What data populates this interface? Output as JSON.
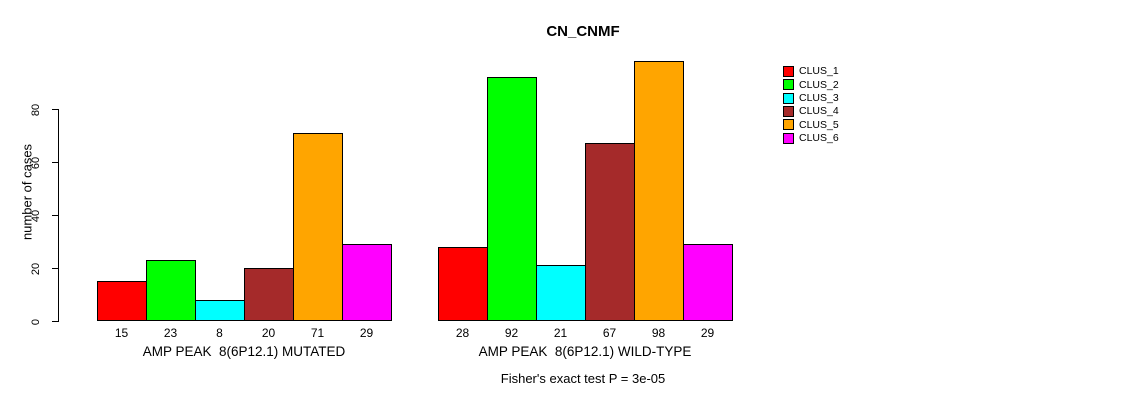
{
  "chart_data": {
    "type": "bar",
    "title": "CN_CNMF",
    "ylabel": "number of cases",
    "yticks": [
      0,
      20,
      40,
      60,
      80
    ],
    "ylim": [
      0,
      100
    ],
    "grid": false,
    "legend_position": "right",
    "clusters": [
      {
        "name": "CLUS_1",
        "color": "#FF0000"
      },
      {
        "name": "CLUS_2",
        "color": "#00FF00"
      },
      {
        "name": "CLUS_3",
        "color": "#00FFFF"
      },
      {
        "name": "CLUS_4",
        "color": "#A52A2A"
      },
      {
        "name": "CLUS_5",
        "color": "#FFA500"
      },
      {
        "name": "CLUS_6",
        "color": "#FF00FF"
      }
    ],
    "groups": [
      {
        "label": "AMP PEAK  8(6P12.1) MUTATED",
        "values": [
          15,
          23,
          8,
          20,
          71,
          29
        ]
      },
      {
        "label": "AMP PEAK  8(6P12.1) WILD-TYPE",
        "values": [
          28,
          92,
          21,
          67,
          98,
          29
        ]
      }
    ],
    "annotation": "Fisher's exact test P = 3e-05"
  }
}
